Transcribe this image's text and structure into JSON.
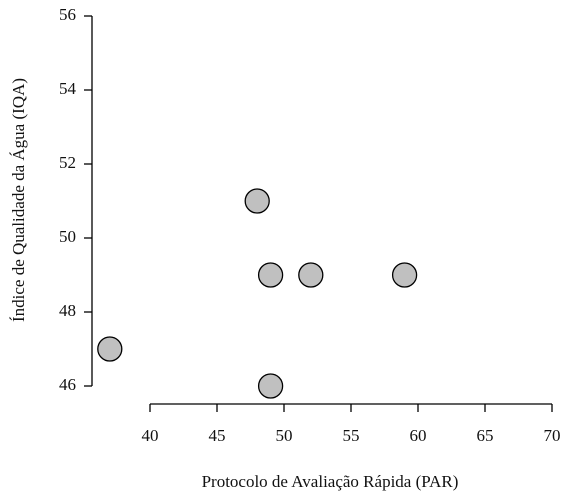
{
  "chart_data": {
    "type": "scatter",
    "x_label": "Protocolo de Avaliação Rápida (PAR)",
    "y_label": "Índice de Qualidade da Água (IQA)",
    "x": [
      37,
      48,
      49,
      52,
      59,
      49
    ],
    "values": [
      47,
      51,
      49,
      49,
      49,
      46
    ],
    "color": "#c0c0c0",
    "xlim": [
      36,
      70
    ],
    "xticks": [
      40,
      45,
      50,
      55,
      60,
      65,
      70
    ],
    "ylim": [
      45.5,
      56
    ],
    "yticks": [
      46,
      48,
      50,
      52,
      54,
      56
    ],
    "grid": false
  }
}
